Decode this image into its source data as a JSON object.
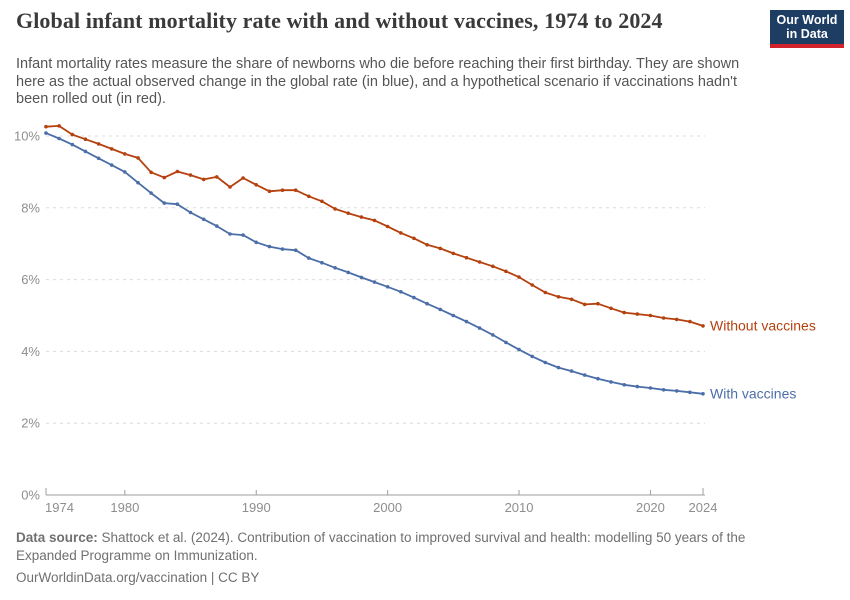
{
  "header": {
    "title": "Global infant mortality rate with and without vaccines, 1974 to 2024",
    "subtitle": "Infant mortality rates measure the share of newborns who die before reaching their first birthday. They are shown here as the actual observed change in the global rate (in blue), and a hypothetical scenario if vaccinations hadn't been rolled out (in red).",
    "logo": {
      "line1": "Our World",
      "line2": "in Data"
    }
  },
  "chart_data": {
    "type": "line",
    "title": "Global infant mortality rate with and without vaccines, 1974 to 2024",
    "xlabel": "",
    "ylabel": "",
    "ylim": [
      0,
      10.5
    ],
    "yticks": [
      0,
      2,
      4,
      6,
      8,
      10
    ],
    "ytick_labels": [
      "0%",
      "2%",
      "4%",
      "6%",
      "8%",
      "10%"
    ],
    "xticks": [
      1974,
      1980,
      1990,
      2000,
      2010,
      2020,
      2024
    ],
    "grid": "horizontal-dashed",
    "legend_position": "end-of-line-labels",
    "x": [
      1974,
      1975,
      1976,
      1977,
      1978,
      1979,
      1980,
      1981,
      1982,
      1983,
      1984,
      1985,
      1986,
      1987,
      1988,
      1989,
      1990,
      1991,
      1992,
      1993,
      1994,
      1995,
      1996,
      1997,
      1998,
      1999,
      2000,
      2001,
      2002,
      2003,
      2004,
      2005,
      2006,
      2007,
      2008,
      2009,
      2010,
      2011,
      2012,
      2013,
      2014,
      2015,
      2016,
      2017,
      2018,
      2019,
      2020,
      2021,
      2022,
      2023,
      2024
    ],
    "series": [
      {
        "name": "Without vaccines",
        "color": "#b5410f",
        "values": [
          10.26,
          10.28,
          10.04,
          9.91,
          9.78,
          9.64,
          9.5,
          9.39,
          8.99,
          8.84,
          9.01,
          8.91,
          8.79,
          8.86,
          8.58,
          8.83,
          8.64,
          8.46,
          8.49,
          8.49,
          8.32,
          8.18,
          7.97,
          7.85,
          7.74,
          7.65,
          7.48,
          7.3,
          7.15,
          6.97,
          6.87,
          6.73,
          6.61,
          6.49,
          6.37,
          6.23,
          6.07,
          5.85,
          5.64,
          5.52,
          5.45,
          5.31,
          5.33,
          5.2,
          5.08,
          5.04,
          5.0,
          4.93,
          4.89,
          4.83,
          4.71
        ]
      },
      {
        "name": "With vaccines",
        "color": "#4c6ea8",
        "values": [
          10.08,
          9.93,
          9.76,
          9.57,
          9.38,
          9.19,
          9.0,
          8.7,
          8.41,
          8.13,
          8.1,
          7.87,
          7.68,
          7.49,
          7.27,
          7.24,
          7.04,
          6.92,
          6.85,
          6.82,
          6.6,
          6.47,
          6.33,
          6.2,
          6.06,
          5.93,
          5.8,
          5.66,
          5.5,
          5.33,
          5.17,
          5.0,
          4.83,
          4.65,
          4.46,
          4.25,
          4.05,
          3.86,
          3.69,
          3.55,
          3.45,
          3.34,
          3.24,
          3.15,
          3.07,
          3.02,
          2.98,
          2.93,
          2.9,
          2.86,
          2.82
        ]
      }
    ]
  },
  "footer": {
    "datasource_label": "Data source:",
    "datasource_text": " Shattock et al. (2024). Contribution of vaccination to improved survival and health: modelling 50 years of the Expanded Programme on Immunization.",
    "license_line": "OurWorldinData.org/vaccination | CC BY"
  },
  "colors": {
    "without_vaccines": "#b5410f",
    "with_vaccines": "#4c6ea8",
    "gridline": "#dcdcdc",
    "axis": "#9e9e9e",
    "tick_text": "#8e8e8e",
    "logo_background": "#1d3d63",
    "logo_bar": "#d0232c"
  }
}
